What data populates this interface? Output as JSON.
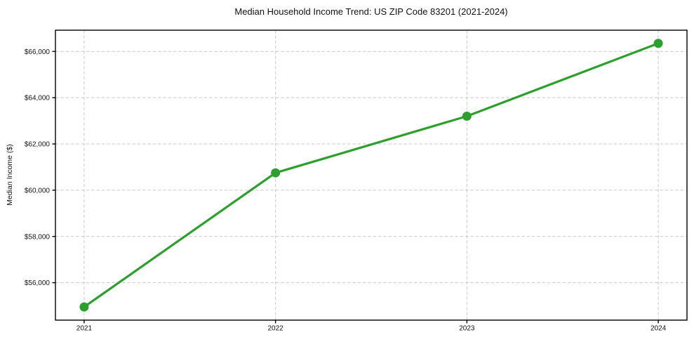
{
  "chart_data": {
    "type": "line",
    "title": "Median Household Income Trend: US ZIP Code 83201 (2021-2024)",
    "xlabel": "",
    "ylabel": "Median Income ($)",
    "categories": [
      "2021",
      "2022",
      "2023",
      "2024"
    ],
    "x": [
      2021,
      2022,
      2023,
      2024
    ],
    "series": [
      {
        "name": "Median Household Income",
        "values": [
          54950,
          60750,
          63200,
          66350
        ]
      }
    ],
    "x_tick_labels": [
      "2021",
      "2022",
      "2023",
      "2024"
    ],
    "y_ticks": [
      56000,
      58000,
      60000,
      62000,
      64000,
      66000
    ],
    "y_tick_labels": [
      "$56,000",
      "$58,000",
      "$60,000",
      "$62,000",
      "$64,000",
      "$66,000"
    ],
    "xlim": [
      2020.85,
      2024.15
    ],
    "ylim": [
      54380,
      66920
    ],
    "grid": true,
    "grid_style": "dashed",
    "legend_position": "none",
    "marker": "circle",
    "colors": {
      "line": "#2ca02c",
      "marker": "#2ca02c",
      "grid": "#c9c9c9",
      "axis": "#000000",
      "text": "#111111",
      "background": "#ffffff"
    }
  }
}
